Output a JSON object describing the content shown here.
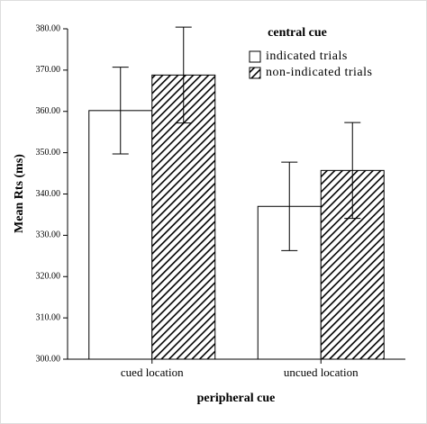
{
  "chart_data": {
    "type": "bar",
    "y_label": "Mean Rts (ms)",
    "x_label": "peripheral cue",
    "legend_title": "central cue",
    "categories": [
      "cued location",
      "uncued location"
    ],
    "series": [
      {
        "name": "indicated trials",
        "color": "#ffffff",
        "values": [
          360.2,
          337.0
        ],
        "errors": [
          10.5,
          10.7
        ]
      },
      {
        "name": "non-indicated trials",
        "color": "#000000",
        "hatch": true,
        "values": [
          368.8,
          345.7
        ],
        "errors": [
          11.6,
          11.6
        ]
      }
    ],
    "ylim": [
      300,
      380
    ],
    "yticks": [
      {
        "value": 300,
        "label": "300.00"
      },
      {
        "value": 310,
        "label": "310.00"
      },
      {
        "value": 320,
        "label": "320.00"
      },
      {
        "value": 330,
        "label": "330.00"
      },
      {
        "value": 340,
        "label": "340.00"
      },
      {
        "value": 350,
        "label": "350.00"
      },
      {
        "value": 360,
        "label": "360.00"
      },
      {
        "value": 370,
        "label": "370.00"
      },
      {
        "value": 380,
        "label": "380.00"
      }
    ],
    "legend": "upper right"
  }
}
